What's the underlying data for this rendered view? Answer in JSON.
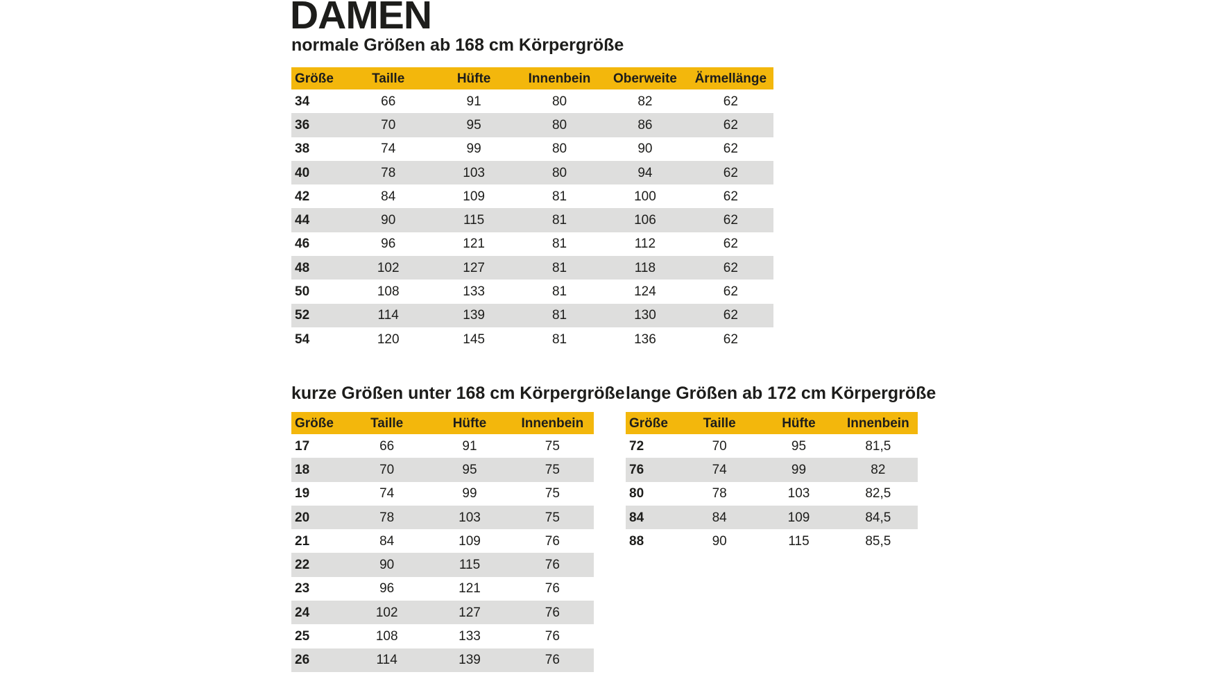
{
  "title": "DAMEN",
  "colors": {
    "header_yellow": "#F3B70C",
    "stripe_gray": "#DEDEDD",
    "text": "#1D1D1B",
    "background": "#FFFFFF"
  },
  "sections": {
    "normal": {
      "subtitle": "normale Größen ab 168 cm Körpergröße",
      "table": {
        "headers": [
          "Größe",
          "Taille",
          "Hüfte",
          "Innenbein",
          "Oberweite",
          "Ärmellänge"
        ],
        "rows": [
          [
            "34",
            "66",
            "91",
            "80",
            "82",
            "62"
          ],
          [
            "36",
            "70",
            "95",
            "80",
            "86",
            "62"
          ],
          [
            "38",
            "74",
            "99",
            "80",
            "90",
            "62"
          ],
          [
            "40",
            "78",
            "103",
            "80",
            "94",
            "62"
          ],
          [
            "42",
            "84",
            "109",
            "81",
            "100",
            "62"
          ],
          [
            "44",
            "90",
            "115",
            "81",
            "106",
            "62"
          ],
          [
            "46",
            "96",
            "121",
            "81",
            "112",
            "62"
          ],
          [
            "48",
            "102",
            "127",
            "81",
            "118",
            "62"
          ],
          [
            "50",
            "108",
            "133",
            "81",
            "124",
            "62"
          ],
          [
            "52",
            "114",
            "139",
            "81",
            "130",
            "62"
          ],
          [
            "54",
            "120",
            "145",
            "81",
            "136",
            "62"
          ]
        ]
      }
    },
    "short": {
      "subtitle": "kurze Größen unter 168 cm Körpergröße",
      "table": {
        "headers": [
          "Größe",
          "Taille",
          "Hüfte",
          "Innenbein"
        ],
        "rows": [
          [
            "17",
            "66",
            "91",
            "75"
          ],
          [
            "18",
            "70",
            "95",
            "75"
          ],
          [
            "19",
            "74",
            "99",
            "75"
          ],
          [
            "20",
            "78",
            "103",
            "75"
          ],
          [
            "21",
            "84",
            "109",
            "76"
          ],
          [
            "22",
            "90",
            "115",
            "76"
          ],
          [
            "23",
            "96",
            "121",
            "76"
          ],
          [
            "24",
            "102",
            "127",
            "76"
          ],
          [
            "25",
            "108",
            "133",
            "76"
          ],
          [
            "26",
            "114",
            "139",
            "76"
          ]
        ]
      }
    },
    "long": {
      "subtitle": "lange Größen ab 172 cm Körpergröße",
      "table": {
        "headers": [
          "Größe",
          "Taille",
          "Hüfte",
          "Innenbein"
        ],
        "rows": [
          [
            "72",
            "70",
            "95",
            "81,5"
          ],
          [
            "76",
            "74",
            "99",
            "82"
          ],
          [
            "80",
            "78",
            "103",
            "82,5"
          ],
          [
            "84",
            "84",
            "109",
            "84,5"
          ],
          [
            "88",
            "90",
            "115",
            "85,5"
          ]
        ]
      }
    }
  }
}
